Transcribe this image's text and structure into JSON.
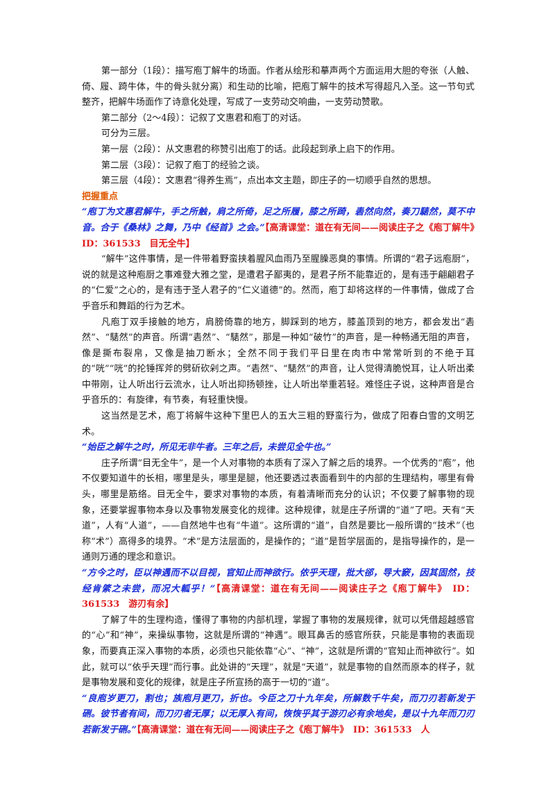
{
  "summary": {
    "part1": "第一部分（1段）：描写庖丁解牛的场面。作者从绘形和摹声两个方面运用大胆的夸张（人触、倚、履、踦牛体，牛的骨头就分离）和生动的比喻，把庖丁解牛的技术写得超凡入圣。这一节句式整齐，把解牛场面作了诗意化处理，写成了一支劳动交响曲，一支劳动赞歌。",
    "part2": "第二部分（2～4段）：记叙了文惠君和庖丁的对话。",
    "layers_intro": "可分为三层。",
    "layer1": "第一层（2段）：从文惠君的称赞引出庖丁的话。此段起到承上启下的作用。",
    "layer2": "第二层（3段）：记叙了庖丁的经验之谈。",
    "layer3": "第三层（4段）：文惠君“得养生焉”，点出本文主题，即庄子的一切顺乎自然的思想。"
  },
  "key_heading": "把握重点",
  "sections": [
    {
      "quote": "“庖丁为文惠君解牛，手之所触，肩之所倚，足之所履，膝之所踦，砉然向然，奏刀騞然，莫不中音。合于《桑林》之舞，乃中《经首》之会。”",
      "ref": "【高清课堂：道在有无间——阅读庄子之《庖丁解牛》　ID：361533　目无全牛】",
      "paras": [
        "“解牛”这件事情，是一件带着野蛮挟着腥风血雨乃至腥臊恶臭的事情。所谓的“君子远庖厨”，说的就是这种庖厨之事难登大雅之堂，是遭君子鄙夷的，是君子所不能靠近的，是有违于翩翩君子的“仁爱”之心的，是有违于圣人君子的“仁义道德”的。然而，庖丁却将这样的一件事情，做成了合乎音乐和舞蹈的行为艺术。",
        "凡庖丁双手接触的地方，肩膀倚靠的地方，脚踩到的地方，膝盖顶到的地方，都会发出“砉然”、“騞然”的声音。所谓“砉然”、“騞然”，那是一种如“破竹”的声音，是一种畅通无阻的声音，像是撕布裂帛，又像是抽刀断水；全然不同于我们平日里在肉市中常常听到的不绝于耳的“咣”“咣”的抡锤挥斧的劈斫砍剁之声。“砉然”、“騞然”的声音，让人觉得清脆悦耳，让人听出柔中带刚，让人听出行云流水，让人听出抑扬顿挫，让人听出举重若轻。难怪庄子说，这种声音是合乎音乐的：有旋律，有节奏，有轻重快慢。",
        "这当然是艺术，庖丁将解牛这种下里巴人的五大三粗的野蛮行为，做成了阳春白雪的文明艺术。"
      ]
    },
    {
      "quote": "“始臣之解牛之时，所见无非牛者。三年之后，未尝见全牛也。”",
      "ref": "",
      "paras": [
        "庄子所谓“目无全牛”，是一个人对事物的本质有了深入了解之后的境界。一个优秀的“庖”，他不仅要知道牛的长相，哪里是头，哪里是腿，他还要透过表面看到牛的内部的生理结构，哪里有骨头，哪里是筋络。目无全牛，要求对事物的本质，有着清晰而充分的认识；不仅要了解事物的现象，还要掌握事物本身以及事物发展变化的规律。这种规律，就是庄子所谓的“道”了吧。天有“天道”，人有“人道”，——自然地牛也有“牛道”。这所谓的“道”，自然是要比一般所谓的“技术”（也称“术”）高得多的境界。“术”是方法层面的，是操作的；“道”是哲学层面的，是指导操作的，是一通则万通的理念和意识。"
      ]
    },
    {
      "quote": "“方今之时，臣以神遇而不以目视，官知止而神欲行。依乎天理，批大郤，导大窾，因其固然，技经肯綮之未尝，而况大軱乎！”",
      "ref": "【高清课堂：道在有无间——阅读庄子之《庖丁解牛》　ID：361533　游刃有余】",
      "paras": [
        "了解了牛的生理构造，懂得了事物的内部机理，掌握了事物的发展规律，就可以凭借超越感官的“心”和“神”，来操纵事物，这就是所谓的“神遇”。眼耳鼻舌的感官所获，只能是事物的表面现象，而要真正深入事物的本质，必须也只能依靠“心”、“神”，这就是所谓的“官知止而神欲行”。如此，就可以“依乎天理”而行事。此处讲的“天理”，就是“天道”，就是事物的自然而原本的样子，就是事物发展和变化的规律，就是庄子所宣扬的高于一切的“道”。"
      ]
    },
    {
      "quote": "“良庖岁更刀，割也；族庖月更刀，折也。今臣之刀十九年矣，所解数千牛矣，而刀刃若新发于硎。彼节者有间，而刀刃者无厚；以无厚入有间，恢恢乎其于游刃必有余地矣，是以十九年而刀刃若新发于硎。”",
      "ref": "【高清课堂：道在有无间——阅读庄子之《庖丁解牛》　ID：361533　人",
      "paras": []
    }
  ]
}
